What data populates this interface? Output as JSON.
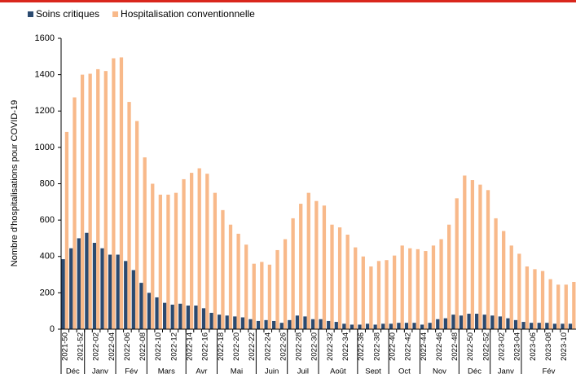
{
  "chart_data": {
    "type": "bar",
    "y_label": "Nombre d'hospitalisations pour COVID-19",
    "categories": [
      "2021-50",
      null,
      "2021-52",
      null,
      "2022-02",
      null,
      "2022-04",
      null,
      "2022-06",
      null,
      "2022-08",
      null,
      "2022-10",
      null,
      "2022-12",
      null,
      "2022-14",
      null,
      "2022-16",
      null,
      "2022-18",
      null,
      "2022-20",
      null,
      "2022-22",
      null,
      "2022-24",
      null,
      "2022-26",
      null,
      "2022-28",
      null,
      "2022-30",
      null,
      "2022-32",
      null,
      "2022-34",
      null,
      "2022-36",
      null,
      "2022-38",
      null,
      "2022-40",
      null,
      "2022-42",
      null,
      "2022-44",
      null,
      "2022-46",
      null,
      "2022-48",
      null,
      "2022-50",
      null,
      "2022-52",
      null,
      "2023-02",
      null,
      "2023-04",
      null,
      "2023-06",
      null,
      "2023-08",
      null,
      "2023-10",
      null
    ],
    "months": [
      {
        "label": "Déc",
        "weeks": 3
      },
      {
        "label": "Janv",
        "weeks": 4
      },
      {
        "label": "Fév",
        "weeks": 4
      },
      {
        "label": "Mars",
        "weeks": 5
      },
      {
        "label": "Avr",
        "weeks": 4
      },
      {
        "label": "Mai",
        "weeks": 5
      },
      {
        "label": "Juin",
        "weeks": 4
      },
      {
        "label": "Juil",
        "weeks": 4
      },
      {
        "label": "Août",
        "weeks": 5
      },
      {
        "label": "Sept",
        "weeks": 4
      },
      {
        "label": "Oct",
        "weeks": 4
      },
      {
        "label": "Nov",
        "weeks": 5
      },
      {
        "label": "Déc",
        "weeks": 4
      },
      {
        "label": "Janv",
        "weeks": 4
      },
      {
        "label": "Fév",
        "weeks": 7
      }
    ],
    "series": [
      {
        "name": "Soins critiques",
        "color": "#2b4a70",
        "values": [
          385,
          445,
          500,
          530,
          475,
          445,
          410,
          410,
          375,
          325,
          255,
          200,
          175,
          145,
          135,
          140,
          130,
          130,
          115,
          90,
          80,
          75,
          70,
          65,
          55,
          45,
          50,
          45,
          35,
          50,
          75,
          70,
          55,
          55,
          45,
          40,
          30,
          25,
          25,
          30,
          25,
          30,
          30,
          35,
          35,
          35,
          25,
          35,
          55,
          60,
          80,
          75,
          85,
          85,
          80,
          75,
          70,
          60,
          50,
          40,
          35,
          35,
          35,
          30,
          30,
          30
        ]
      },
      {
        "name": "Hospitalisation conventionnelle",
        "color": "#f8b98a",
        "values": [
          1085,
          1275,
          1400,
          1405,
          1430,
          1420,
          1490,
          1495,
          1250,
          1145,
          945,
          800,
          740,
          740,
          750,
          825,
          860,
          885,
          855,
          750,
          655,
          575,
          525,
          465,
          360,
          370,
          355,
          435,
          495,
          610,
          690,
          750,
          705,
          680,
          575,
          560,
          520,
          450,
          400,
          345,
          375,
          380,
          405,
          460,
          445,
          440,
          430,
          460,
          495,
          575,
          720,
          845,
          820,
          795,
          765,
          610,
          540,
          460,
          415,
          345,
          330,
          320,
          275,
          245,
          245,
          260
        ]
      }
    ],
    "ylim": [
      0,
      1600
    ],
    "yticks": [
      0,
      200,
      400,
      600,
      800,
      1000,
      1200,
      1400,
      1600
    ],
    "grid": false
  }
}
